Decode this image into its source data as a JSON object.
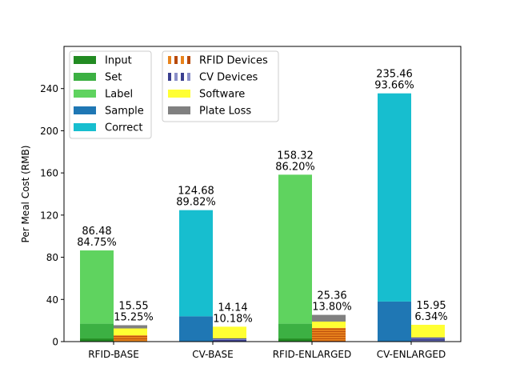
{
  "chart_data": {
    "type": "bar",
    "ylabel": "Per Meal Cost (RMB)",
    "xlabel": "",
    "ylim": [
      0,
      280
    ],
    "yticks": [
      0,
      40,
      80,
      120,
      160,
      200,
      240
    ],
    "categories": [
      "RFID-BASE",
      "CV-BASE",
      "RFID-ENLARGED",
      "CV-ENLARGED"
    ],
    "colors": {
      "input": "#228b22",
      "set": "#3cb043",
      "label": "#5fd35f",
      "sample": "#1f77b4",
      "correct": "#17becf",
      "rfid_devices": "#e8831c",
      "rfid_devices_dark": "#b84a0b",
      "cv_devices": "#3a3f8f",
      "cv_devices_light": "#8a8fc8",
      "software": "#ffff33",
      "plate_loss": "#808080"
    },
    "legend": {
      "placement": "top-left",
      "col1": [
        {
          "key": "input",
          "label": "Input"
        },
        {
          "key": "set",
          "label": "Set"
        },
        {
          "key": "label",
          "label": "Label"
        },
        {
          "key": "sample",
          "label": "Sample"
        },
        {
          "key": "correct",
          "label": "Correct"
        }
      ],
      "col2": [
        {
          "key": "rfid_devices",
          "label": "RFID Devices"
        },
        {
          "key": "cv_devices",
          "label": "CV Devices"
        },
        {
          "key": "software",
          "label": "Software"
        },
        {
          "key": "plate_loss",
          "label": "Plate Loss"
        }
      ]
    },
    "groups": [
      {
        "name": "RFID-BASE",
        "labor": {
          "total": "86.48",
          "pct": "84.75%",
          "segments": [
            {
              "key": "input",
              "value": 3
            },
            {
              "key": "set",
              "value": 14
            },
            {
              "key": "label",
              "value": 69.48
            }
          ]
        },
        "equipment": {
          "total": "15.55",
          "pct": "15.25%",
          "segments": [
            {
              "key": "rfid_devices",
              "value": 6
            },
            {
              "key": "software",
              "value": 6.5
            },
            {
              "key": "plate_loss",
              "value": 3.05
            }
          ]
        }
      },
      {
        "name": "CV-BASE",
        "labor": {
          "total": "124.68",
          "pct": "89.82%",
          "segments": [
            {
              "key": "sample",
              "value": 24
            },
            {
              "key": "correct",
              "value": 100.68
            }
          ]
        },
        "equipment": {
          "total": "14.14",
          "pct": "10.18%",
          "segments": [
            {
              "key": "cv_devices",
              "value": 3
            },
            {
              "key": "software",
              "value": 11.14
            }
          ]
        }
      },
      {
        "name": "RFID-ENLARGED",
        "labor": {
          "total": "158.32",
          "pct": "86.20%",
          "segments": [
            {
              "key": "input",
              "value": 3
            },
            {
              "key": "set",
              "value": 14
            },
            {
              "key": "label",
              "value": 141.32
            }
          ]
        },
        "equipment": {
          "total": "25.36",
          "pct": "13.80%",
          "segments": [
            {
              "key": "rfid_devices",
              "value": 13
            },
            {
              "key": "software",
              "value": 6
            },
            {
              "key": "plate_loss",
              "value": 6.36
            }
          ]
        }
      },
      {
        "name": "CV-ENLARGED",
        "labor": {
          "total": "235.46",
          "pct": "93.66%",
          "segments": [
            {
              "key": "sample",
              "value": 38
            },
            {
              "key": "correct",
              "value": 197.46
            }
          ]
        },
        "equipment": {
          "total": "15.95",
          "pct": "6.34%",
          "segments": [
            {
              "key": "cv_devices",
              "value": 4
            },
            {
              "key": "software",
              "value": 11.95
            }
          ]
        }
      }
    ]
  }
}
